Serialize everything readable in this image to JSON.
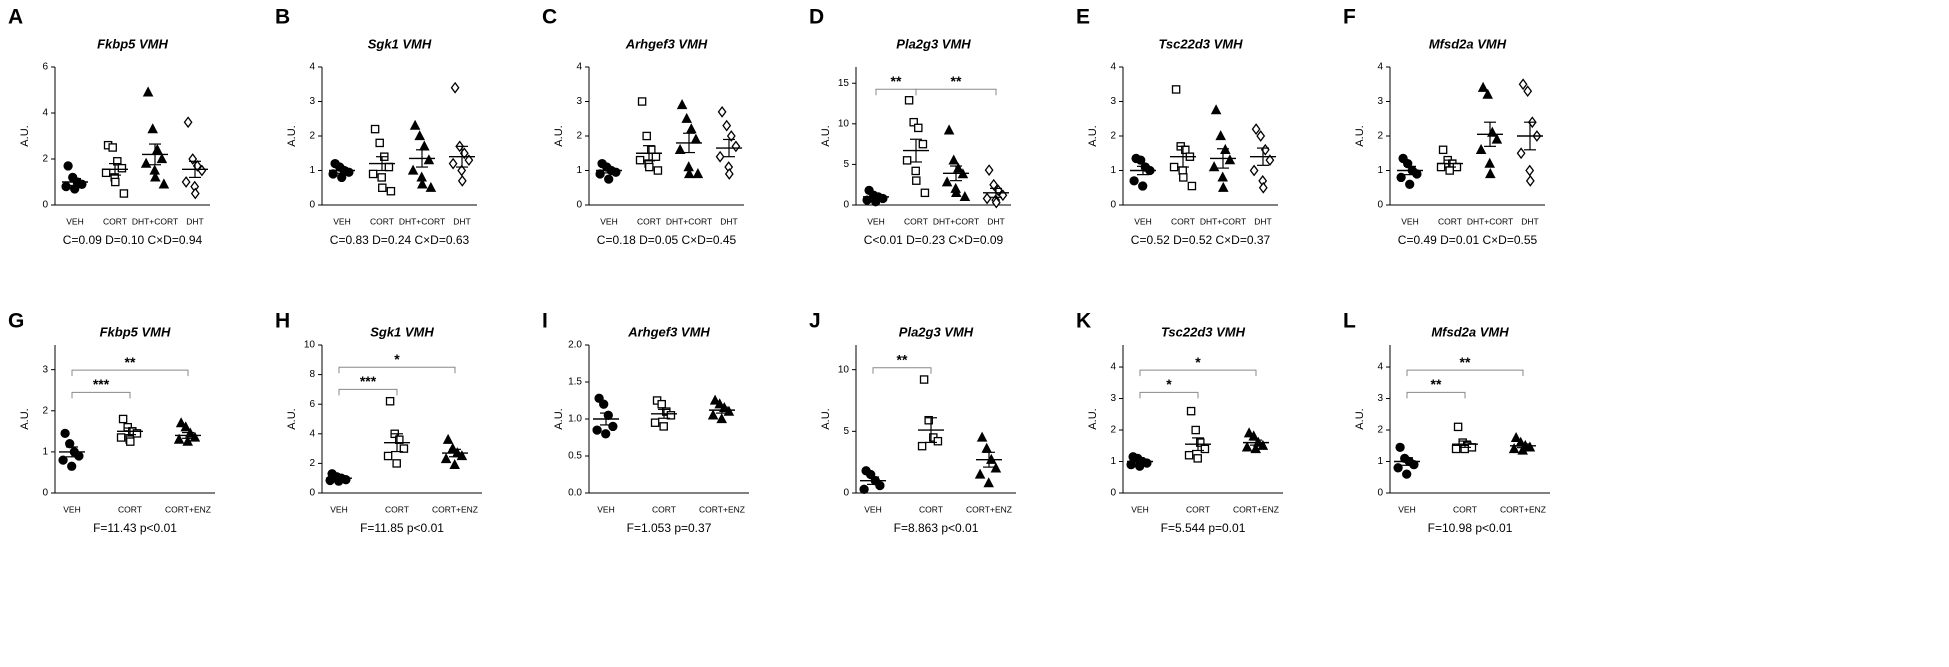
{
  "chart_data": [
    {
      "type": "dot",
      "panel": "A",
      "title": "Fkbp5 VMH",
      "ylabel": "A.U.",
      "categories": [
        "VEH",
        "CORT",
        "DHT+CORT",
        "DHT"
      ],
      "markers": [
        "circle",
        "square",
        "triangle",
        "diamond"
      ],
      "filled": [
        true,
        false,
        true,
        false
      ],
      "points": [
        [
          1.7,
          1.2,
          1.0,
          0.9,
          0.8,
          0.7
        ],
        [
          2.6,
          2.5,
          1.9,
          1.6,
          1.4,
          1.2,
          1.0,
          0.5
        ],
        [
          4.9,
          3.3,
          2.4,
          2.0,
          1.8,
          1.5,
          1.2,
          0.9
        ],
        [
          3.6,
          2.0,
          1.7,
          1.5,
          1.0,
          0.8,
          0.5
        ]
      ],
      "means": [
        1.0,
        1.55,
        2.2,
        1.55
      ],
      "sems": [
        0.15,
        0.25,
        0.45,
        0.35
      ],
      "ylim": [
        0,
        6
      ],
      "yticks": [
        0,
        2,
        4,
        6
      ],
      "brackets": [],
      "stats": "C=0.09 D=0.10 C×D=0.94"
    },
    {
      "type": "dot",
      "panel": "B",
      "title": "Sgk1 VMH",
      "ylabel": "A.U.",
      "categories": [
        "VEH",
        "CORT",
        "DHT+CORT",
        "DHT"
      ],
      "markers": [
        "circle",
        "square",
        "triangle",
        "diamond"
      ],
      "filled": [
        true,
        false,
        true,
        false
      ],
      "points": [
        [
          1.2,
          1.1,
          1.0,
          0.95,
          0.9,
          0.8
        ],
        [
          2.2,
          1.8,
          1.4,
          1.1,
          0.9,
          0.8,
          0.5,
          0.4
        ],
        [
          2.3,
          2.0,
          1.7,
          1.3,
          1.0,
          0.8,
          0.6,
          0.5
        ],
        [
          3.4,
          1.7,
          1.5,
          1.3,
          1.2,
          1.0,
          0.7
        ]
      ],
      "means": [
        1.0,
        1.2,
        1.35,
        1.4
      ],
      "sems": [
        0.08,
        0.2,
        0.25,
        0.3
      ],
      "ylim": [
        0,
        4
      ],
      "yticks": [
        0,
        1,
        2,
        3,
        4
      ],
      "brackets": [],
      "stats": "C=0.83 D=0.24 C×D=0.63"
    },
    {
      "type": "dot",
      "panel": "C",
      "title": "Arhgef3 VMH",
      "ylabel": "A.U.",
      "categories": [
        "VEH",
        "CORT",
        "DHT+CORT",
        "DHT"
      ],
      "markers": [
        "circle",
        "square",
        "triangle",
        "diamond"
      ],
      "filled": [
        true,
        false,
        true,
        false
      ],
      "points": [
        [
          1.2,
          1.1,
          1.0,
          0.95,
          0.9,
          0.75
        ],
        [
          3.0,
          2.0,
          1.6,
          1.4,
          1.3,
          1.2,
          1.1,
          1.0
        ],
        [
          2.9,
          2.5,
          2.2,
          1.9,
          1.6,
          1.1,
          0.9,
          0.9
        ],
        [
          2.7,
          2.3,
          2.0,
          1.7,
          1.4,
          1.1,
          0.9
        ]
      ],
      "means": [
        1.0,
        1.5,
        1.8,
        1.65
      ],
      "sems": [
        0.07,
        0.22,
        0.28,
        0.25
      ],
      "ylim": [
        0,
        4
      ],
      "yticks": [
        0,
        1,
        2,
        3,
        4
      ],
      "brackets": [],
      "stats": "C=0.18 D=0.05 C×D=0.45"
    },
    {
      "type": "dot",
      "panel": "D",
      "title": "Pla2g3 VMH",
      "ylabel": "A.U.",
      "categories": [
        "VEH",
        "CORT",
        "DHT+CORT",
        "DHT"
      ],
      "markers": [
        "circle",
        "square",
        "triangle",
        "diamond"
      ],
      "filled": [
        true,
        false,
        true,
        false
      ],
      "points": [
        [
          1.8,
          1.2,
          1.0,
          0.8,
          0.6,
          0.4
        ],
        [
          12.9,
          10.2,
          9.5,
          7.5,
          5.5,
          4.2,
          3.0,
          1.5
        ],
        [
          9.2,
          5.5,
          4.5,
          3.8,
          2.8,
          2.0,
          1.5,
          1.0
        ],
        [
          4.3,
          2.5,
          1.8,
          1.2,
          0.8,
          0.6,
          0.3
        ]
      ],
      "means": [
        1.0,
        6.7,
        3.9,
        1.5
      ],
      "sems": [
        0.2,
        1.4,
        0.9,
        0.55
      ],
      "ylim": [
        0,
        17
      ],
      "yticks": [
        0,
        5,
        10,
        15
      ],
      "brackets": [
        {
          "from": 0,
          "to": 1,
          "label": "**"
        },
        {
          "from": 1,
          "to": 3,
          "label": "**"
        }
      ],
      "stats": "C<0.01 D=0.23 C×D=0.09"
    },
    {
      "type": "dot",
      "panel": "E",
      "title": "Tsc22d3 VMH",
      "ylabel": "A.U.",
      "categories": [
        "VEH",
        "CORT",
        "DHT+CORT",
        "DHT"
      ],
      "markers": [
        "circle",
        "square",
        "triangle",
        "diamond"
      ],
      "filled": [
        true,
        false,
        true,
        false
      ],
      "points": [
        [
          1.35,
          1.3,
          1.1,
          1.0,
          0.7,
          0.55
        ],
        [
          3.35,
          1.7,
          1.6,
          1.4,
          1.1,
          1.0,
          0.8,
          0.55
        ],
        [
          2.75,
          2.0,
          1.6,
          1.3,
          1.1,
          0.8,
          0.5
        ],
        [
          2.2,
          2.0,
          1.6,
          1.3,
          1.0,
          0.7,
          0.5
        ]
      ],
      "means": [
        1.0,
        1.4,
        1.35,
        1.4
      ],
      "sems": [
        0.12,
        0.3,
        0.28,
        0.25
      ],
      "ylim": [
        0,
        4
      ],
      "yticks": [
        0,
        1,
        2,
        3,
        4
      ],
      "brackets": [],
      "stats": "C=0.52 D=0.52 C×D=0.37"
    },
    {
      "type": "dot",
      "panel": "F",
      "title": "Mfsd2a VMH",
      "ylabel": "A.U.",
      "categories": [
        "VEH",
        "CORT",
        "DHT+CORT",
        "DHT"
      ],
      "markers": [
        "circle",
        "square",
        "triangle",
        "diamond"
      ],
      "filled": [
        true,
        false,
        true,
        false
      ],
      "points": [
        [
          1.35,
          1.2,
          1.0,
          0.9,
          0.8,
          0.6
        ],
        [
          1.6,
          1.3,
          1.2,
          1.1,
          1.1,
          1.0
        ],
        [
          3.4,
          3.2,
          2.1,
          1.9,
          1.6,
          1.2,
          0.9
        ],
        [
          3.5,
          3.3,
          2.4,
          2.0,
          1.5,
          1.0,
          0.7
        ]
      ],
      "means": [
        1.0,
        1.2,
        2.05,
        2.0
      ],
      "sems": [
        0.12,
        0.1,
        0.35,
        0.4
      ],
      "ylim": [
        0,
        4
      ],
      "yticks": [
        0,
        1,
        2,
        3,
        4
      ],
      "brackets": [],
      "stats": "C=0.49 D=0.01 C×D=0.55"
    },
    {
      "type": "dot",
      "panel": "G",
      "title": "Fkbp5 VMH",
      "ylabel": "A.U.",
      "categories": [
        "VEH",
        "CORT",
        "CORT+ENZ"
      ],
      "markers": [
        "circle",
        "square",
        "triangle"
      ],
      "filled": [
        true,
        false,
        true
      ],
      "points": [
        [
          1.45,
          1.2,
          1.0,
          0.9,
          0.8,
          0.65
        ],
        [
          1.8,
          1.6,
          1.5,
          1.45,
          1.35,
          1.3,
          1.25
        ],
        [
          1.7,
          1.6,
          1.45,
          1.35,
          1.3,
          1.25
        ]
      ],
      "means": [
        1.0,
        1.5,
        1.4
      ],
      "sems": [
        0.12,
        0.08,
        0.07
      ],
      "ylim": [
        0,
        3.6
      ],
      "yticks": [
        0,
        1,
        2,
        3
      ],
      "brackets": [
        {
          "from": 0,
          "to": 1,
          "label": "***"
        },
        {
          "from": 0,
          "to": 2,
          "label": "**"
        }
      ],
      "stats": "F=11.43 p<0.01"
    },
    {
      "type": "dot",
      "panel": "H",
      "title": "Sgk1 VMH",
      "ylabel": "A.U.",
      "categories": [
        "VEH",
        "CORT",
        "CORT+ENZ"
      ],
      "markers": [
        "circle",
        "square",
        "triangle"
      ],
      "filled": [
        true,
        false,
        true
      ],
      "points": [
        [
          1.3,
          1.1,
          1.0,
          0.9,
          0.85,
          0.8
        ],
        [
          6.2,
          4.0,
          3.6,
          3.0,
          2.5,
          2.0
        ],
        [
          3.6,
          3.0,
          2.7,
          2.5,
          2.3,
          1.9
        ]
      ],
      "means": [
        1.0,
        3.4,
        2.7
      ],
      "sems": [
        0.1,
        0.6,
        0.25
      ],
      "ylim": [
        0,
        10
      ],
      "yticks": [
        0,
        2,
        4,
        6,
        8,
        10
      ],
      "brackets": [
        {
          "from": 0,
          "to": 1,
          "label": "***"
        },
        {
          "from": 0,
          "to": 2,
          "label": "*"
        }
      ],
      "stats": "F=11.85 p<0.01"
    },
    {
      "type": "dot",
      "panel": "I",
      "title": "Arhgef3 VMH",
      "ylabel": "A.U.",
      "categories": [
        "VEH",
        "CORT",
        "CORT+ENZ"
      ],
      "markers": [
        "circle",
        "square",
        "triangle"
      ],
      "filled": [
        true,
        false,
        true
      ],
      "points": [
        [
          1.28,
          1.2,
          1.05,
          0.9,
          0.85,
          0.8
        ],
        [
          1.25,
          1.2,
          1.1,
          1.05,
          0.95,
          0.9
        ],
        [
          1.25,
          1.2,
          1.15,
          1.1,
          1.05,
          1.0
        ]
      ],
      "means": [
        1.0,
        1.07,
        1.12
      ],
      "sems": [
        0.08,
        0.06,
        0.04
      ],
      "ylim": [
        0,
        2
      ],
      "yticks": [
        {
          "value": 0,
          "label": "0.0"
        },
        0.5,
        {
          "value": 1,
          "label": "1.0"
        },
        1.5,
        {
          "value": 2,
          "label": "2.0"
        }
      ],
      "brackets": [],
      "stats": "F=1.053 p=0.37"
    },
    {
      "type": "dot",
      "panel": "J",
      "title": "Pla2g3 VMH",
      "ylabel": "A.U.",
      "categories": [
        "VEH",
        "CORT",
        "CORT+ENZ"
      ],
      "markers": [
        "circle",
        "square",
        "triangle"
      ],
      "filled": [
        true,
        false,
        true
      ],
      "points": [
        [
          1.8,
          1.5,
          1.0,
          0.6,
          0.3
        ],
        [
          9.2,
          5.9,
          4.5,
          4.2,
          3.8
        ],
        [
          4.5,
          3.6,
          2.7,
          2.0,
          1.5,
          0.8
        ]
      ],
      "means": [
        1.0,
        5.1,
        2.7
      ],
      "sems": [
        0.3,
        1.0,
        0.6
      ],
      "ylim": [
        0,
        12
      ],
      "yticks": [
        0,
        5,
        10
      ],
      "brackets": [
        {
          "from": 0,
          "to": 1,
          "label": "**"
        }
      ],
      "stats": "F=8.863 p<0.01"
    },
    {
      "type": "dot",
      "panel": "K",
      "title": "Tsc22d3 VMH",
      "ylabel": "A.U.",
      "categories": [
        "VEH",
        "CORT",
        "CORT+ENZ"
      ],
      "markers": [
        "circle",
        "square",
        "triangle"
      ],
      "filled": [
        true,
        false,
        true
      ],
      "points": [
        [
          1.15,
          1.1,
          1.0,
          0.95,
          0.9,
          0.85
        ],
        [
          2.6,
          2.0,
          1.6,
          1.4,
          1.2,
          1.1
        ],
        [
          1.9,
          1.8,
          1.6,
          1.5,
          1.45,
          1.4
        ]
      ],
      "means": [
        1.0,
        1.55,
        1.6
      ],
      "sems": [
        0.05,
        0.2,
        0.08
      ],
      "ylim": [
        0,
        4.7
      ],
      "yticks": [
        0,
        1,
        2,
        3,
        4
      ],
      "brackets": [
        {
          "from": 0,
          "to": 1,
          "label": "*"
        },
        {
          "from": 0,
          "to": 2,
          "label": "*"
        }
      ],
      "stats": "F=5.544 p=0.01"
    },
    {
      "type": "dot",
      "panel": "L",
      "title": "Mfsd2a VMH",
      "ylabel": "A.U.",
      "categories": [
        "VEH",
        "CORT",
        "CORT+ENZ"
      ],
      "markers": [
        "circle",
        "square",
        "triangle"
      ],
      "filled": [
        true,
        false,
        true
      ],
      "points": [
        [
          1.45,
          1.1,
          1.0,
          0.9,
          0.8,
          0.6
        ],
        [
          2.1,
          1.6,
          1.5,
          1.45,
          1.4,
          1.4
        ],
        [
          1.75,
          1.6,
          1.5,
          1.45,
          1.4,
          1.35
        ]
      ],
      "means": [
        1.0,
        1.55,
        1.5
      ],
      "sems": [
        0.12,
        0.1,
        0.06
      ],
      "ylim": [
        0,
        4.7
      ],
      "yticks": [
        0,
        1,
        2,
        3,
        4
      ],
      "brackets": [
        {
          "from": 0,
          "to": 1,
          "label": "**"
        },
        {
          "from": 0,
          "to": 2,
          "label": "**"
        }
      ],
      "stats": "F=10.98 p<0.01"
    }
  ]
}
